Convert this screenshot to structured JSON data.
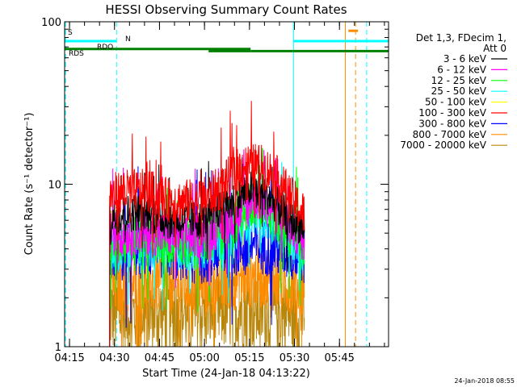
{
  "chart_data": {
    "type": "line",
    "title": "HESSI Observing Summary Count Rates",
    "xlabel": "Start Time (24-Jan-18 04:13:22)",
    "ylabel": "Count Rate (s⁻¹ detector⁻¹)",
    "y_scale": "log",
    "ylim": [
      1,
      100
    ],
    "xlim_minutes_after_0413": [
      0,
      108
    ],
    "x_ticks": [
      {
        "label": "04:15",
        "minute": 1.63
      },
      {
        "label": "04:30",
        "minute": 16.63
      },
      {
        "label": "04:45",
        "minute": 31.63
      },
      {
        "label": "05:00",
        "minute": 46.63
      },
      {
        "label": "05:15",
        "minute": 61.63
      },
      {
        "label": "05:30",
        "minute": 76.63
      },
      {
        "label": "05:45",
        "minute": 91.63
      }
    ],
    "y_ticks": [
      {
        "label": "1",
        "value": 1
      },
      {
        "label": "10",
        "value": 10
      },
      {
        "label": "100",
        "value": 100
      }
    ],
    "legend": {
      "header": [
        "Det 1,3, FDecim 1,",
        "Att 0"
      ],
      "placement": "right",
      "entries": [
        {
          "label": "3 - 6 keV",
          "color": "#000000"
        },
        {
          "label": "6 - 12 keV",
          "color": "#ff00ff"
        },
        {
          "label": "12 - 25 keV",
          "color": "#00ff00"
        },
        {
          "label": "25 - 50 keV",
          "color": "#00ffff"
        },
        {
          "label": "50 - 100 keV",
          "color": "#ffff00"
        },
        {
          "label": "100 - 300 keV",
          "color": "#ff0000"
        },
        {
          "label": "300 - 800 keV",
          "color": "#0000ff"
        },
        {
          "label": "800 - 7000 keV",
          "color": "#ff8c00"
        },
        {
          "label": "7000 - 20000 keV",
          "color": "#b8860b"
        }
      ]
    },
    "series": [
      {
        "name": "100 - 300 keV",
        "color": "#ff0000",
        "noise": 0.14,
        "points": [
          [
            15.0,
            8.5
          ],
          [
            20,
            9.0
          ],
          [
            28,
            9.0
          ],
          [
            34,
            8.0
          ],
          [
            40,
            7.8
          ],
          [
            46,
            8.0
          ],
          [
            52,
            9.5
          ],
          [
            56,
            11.5
          ],
          [
            60,
            13.0
          ],
          [
            65,
            13.0
          ],
          [
            70,
            11.5
          ],
          [
            76,
            8.0
          ],
          [
            80,
            6.5
          ]
        ]
      },
      {
        "name": "3 - 6 keV",
        "color": "#000000",
        "noise": 0.12,
        "points": [
          [
            15.0,
            6.3
          ],
          [
            25,
            6.8
          ],
          [
            35,
            6.0
          ],
          [
            45,
            6.0
          ],
          [
            55,
            7.5
          ],
          [
            62,
            9.5
          ],
          [
            68,
            8.5
          ],
          [
            75,
            6.0
          ],
          [
            80,
            5.5
          ]
        ]
      },
      {
        "name": "6 - 12 keV",
        "color": "#ff00ff",
        "noise": 0.14,
        "points": [
          [
            15.0,
            5.0
          ],
          [
            30,
            5.0
          ],
          [
            45,
            4.8
          ],
          [
            55,
            6.0
          ],
          [
            63,
            8.5
          ],
          [
            70,
            7.0
          ],
          [
            80,
            4.5
          ]
        ]
      },
      {
        "name": "12 - 25 keV",
        "color": "#00ff00",
        "noise": 0.15,
        "points": [
          [
            15.0,
            4.5
          ],
          [
            30,
            4.6
          ],
          [
            45,
            4.4
          ],
          [
            55,
            5.5
          ],
          [
            63,
            8.0
          ],
          [
            72,
            6.0
          ],
          [
            80,
            4.0
          ]
        ]
      },
      {
        "name": "25 - 50 keV",
        "color": "#00ffff",
        "noise": 0.15,
        "points": [
          [
            15.0,
            4.0
          ],
          [
            30,
            4.2
          ],
          [
            45,
            4.0
          ],
          [
            55,
            5.0
          ],
          [
            63,
            7.0
          ],
          [
            72,
            5.5
          ],
          [
            80,
            3.8
          ]
        ]
      },
      {
        "name": "300 - 800 keV",
        "color": "#0000ff",
        "noise": 0.18,
        "points": [
          [
            15.0,
            3.8
          ],
          [
            30,
            4.0
          ],
          [
            45,
            3.6
          ],
          [
            55,
            4.0
          ],
          [
            63,
            4.2
          ],
          [
            72,
            4.0
          ],
          [
            80,
            3.5
          ]
        ]
      },
      {
        "name": "800 - 7000 keV",
        "color": "#ff8c00",
        "noise": 0.2,
        "points": [
          [
            15.0,
            2.4
          ],
          [
            30,
            2.5
          ],
          [
            45,
            2.4
          ],
          [
            55,
            2.6
          ],
          [
            63,
            2.7
          ],
          [
            72,
            2.6
          ],
          [
            80,
            2.3
          ]
        ]
      },
      {
        "name": "7000 - 20000 keV",
        "color": "#b8860b",
        "noise": 0.25,
        "points": [
          [
            15.0,
            1.6
          ],
          [
            40,
            1.6
          ],
          [
            60,
            1.7
          ],
          [
            80,
            1.6
          ]
        ]
      }
    ],
    "flag_bars": [
      {
        "label": "S",
        "color": "#ff8c00",
        "y": 91,
        "segments": []
      },
      {
        "label": "N",
        "color": "#00ffff",
        "y": 76,
        "segments": [
          [
            0,
            17.3
          ],
          [
            76.3,
            108
          ]
        ]
      },
      {
        "label": "RDO",
        "color": "#008000",
        "y": 68,
        "segments": [
          [
            0,
            62
          ]
        ]
      },
      {
        "label": "RDS",
        "color": "#008000",
        "y": 66,
        "segments": [
          [
            48,
            62
          ],
          [
            62,
            76
          ],
          [
            76,
            108
          ]
        ]
      }
    ],
    "vertical_markers": [
      {
        "minute": 0.3,
        "color": "#00ffff",
        "style": "dashed"
      },
      {
        "minute": 17.3,
        "color": "#00ffff",
        "style": "dashed"
      },
      {
        "minute": 76.3,
        "color": "#00ffff",
        "style": "solid"
      },
      {
        "minute": 93.6,
        "color": "#ff8c00",
        "style": "solid"
      },
      {
        "minute": 97.0,
        "color": "#ff8c00",
        "style": "dashed"
      },
      {
        "minute": 100.7,
        "color": "#00ffff",
        "style": "dashed"
      }
    ],
    "footer_date": "24-Jan-2018 08:55"
  }
}
